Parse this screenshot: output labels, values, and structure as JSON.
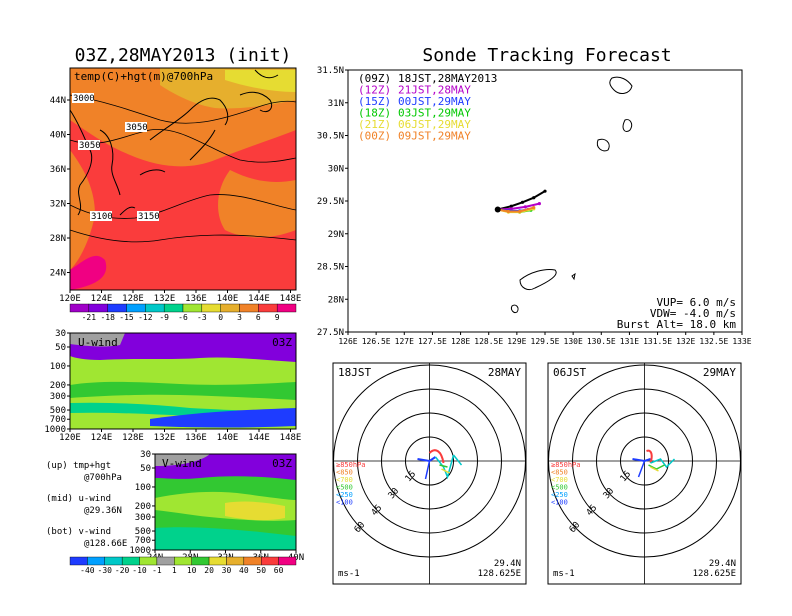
{
  "left_panel": {
    "title": "03Z,28MAY2013 (init)",
    "map_label": "temp(C)+hgt(m)@700hPa",
    "lat_ticks": [
      "44N",
      "40N",
      "36N",
      "32N",
      "28N",
      "24N"
    ],
    "lon_ticks": [
      "120E",
      "124E",
      "128E",
      "132E",
      "136E",
      "140E",
      "144E",
      "148E"
    ],
    "contour_labels": [
      "3000",
      "3050",
      "3050",
      "3100",
      "3150"
    ],
    "temp_colorbar": {
      "labels": [
        "-21",
        "-18",
        "-15",
        "-12",
        "-9",
        "-6",
        "-3",
        "0",
        "3",
        "6",
        "9"
      ],
      "colors": [
        "#a000c8",
        "#8200dc",
        "#1e3cff",
        "#00a0ff",
        "#00c8c8",
        "#00d28c",
        "#a0e632",
        "#e6dc32",
        "#e6af2d",
        "#f08228",
        "#fa3c3c",
        "#f00082"
      ]
    },
    "u_wind": {
      "title": "U-wind",
      "time": "03Z",
      "p_ticks": [
        "30",
        "50",
        "100",
        "200",
        "300",
        "500",
        "700",
        "1000"
      ],
      "x_ticks": [
        "120E",
        "124E",
        "128E",
        "132E",
        "136E",
        "140E",
        "144E",
        "148E"
      ]
    },
    "v_wind": {
      "title": "V-wind",
      "time": "03Z",
      "p_ticks": [
        "30",
        "50",
        "100",
        "200",
        "300",
        "500",
        "700",
        "1000"
      ],
      "x_ticks": [
        "24N",
        "28N",
        "32N",
        "36N",
        "40N"
      ]
    },
    "notes": [
      {
        "label": "(up) tmp+hgt",
        "sub": "@700hPa"
      },
      {
        "label": "(mid) u-wind",
        "sub": "@29.36N"
      },
      {
        "label": "(bot) v-wind",
        "sub": "@128.66E"
      }
    ],
    "wind_colorbar": {
      "labels": [
        "-40",
        "-30",
        "-20",
        "-10",
        "-1",
        "1",
        "10",
        "20",
        "30",
        "40",
        "50",
        "60"
      ],
      "colors": [
        "#1e3cff",
        "#00a0ff",
        "#00c8c8",
        "#00d28c",
        "#a0e632",
        "#a0a0a0",
        "#a0e632",
        "#32c832",
        "#e6dc32",
        "#e6af2d",
        "#f08228",
        "#fa3c3c",
        "#f00082"
      ]
    }
  },
  "chart_data": {
    "type": "scatter",
    "title": "Sonde Tracking Forecast",
    "xlim": [
      126,
      133
    ],
    "ylim": [
      27.5,
      31.5
    ],
    "x_ticks": [
      "126E",
      "126.5E",
      "127E",
      "127.5E",
      "128E",
      "128.5E",
      "129E",
      "129.5E",
      "130E",
      "130.5E",
      "131E",
      "131.5E",
      "132E",
      "132.5E",
      "133E"
    ],
    "y_ticks": [
      "31.5N",
      "31N",
      "30.5N",
      "30N",
      "29.5N",
      "29N",
      "28.5N",
      "28N",
      "27.5N"
    ],
    "legend": [
      {
        "code": "(09Z)",
        "text": "18JST,28MAY2013",
        "color": "#000000"
      },
      {
        "code": "(12Z)",
        "text": "21JST,28MAY",
        "color": "#b400c8"
      },
      {
        "code": "(15Z)",
        "text": "00JST,29MAY",
        "color": "#1e3cff"
      },
      {
        "code": "(18Z)",
        "text": "03JST,29MAY",
        "color": "#00c800"
      },
      {
        "code": "(21Z)",
        "text": "06JST,29MAY",
        "color": "#e6dc32"
      },
      {
        "code": "(00Z)",
        "text": "09JST,29MAY",
        "color": "#f08228"
      }
    ],
    "series": [
      {
        "name": "(09Z)",
        "color": "#000000",
        "x": [
          128.66,
          128.9,
          129.1,
          129.3,
          129.5
        ],
        "y": [
          29.37,
          29.42,
          29.48,
          29.55,
          29.65
        ]
      },
      {
        "name": "(12Z)",
        "color": "#b400c8",
        "x": [
          128.66,
          128.9,
          129.15,
          129.4
        ],
        "y": [
          29.37,
          29.38,
          29.41,
          29.46
        ]
      },
      {
        "name": "(15Z)",
        "color": "#1e3cff",
        "x": [
          128.66,
          128.85,
          129.05,
          129.2
        ],
        "y": [
          29.37,
          29.35,
          29.35,
          29.37
        ]
      },
      {
        "name": "(18Z)",
        "color": "#00c800",
        "x": [
          128.66,
          128.85,
          129.05,
          129.25
        ],
        "y": [
          29.37,
          29.34,
          29.33,
          29.36
        ]
      },
      {
        "name": "(21Z)",
        "color": "#e6dc32",
        "x": [
          128.66,
          128.85,
          129.05,
          129.3
        ],
        "y": [
          29.37,
          29.33,
          29.33,
          29.38
        ]
      },
      {
        "name": "(00Z)",
        "color": "#f08228",
        "x": [
          128.66,
          128.85,
          129.05,
          129.3
        ],
        "y": [
          29.37,
          29.34,
          29.34,
          29.4
        ]
      }
    ],
    "info": [
      "VUP= 6.0 m/s",
      "VDW= -4.0 m/s",
      "Burst Alt= 18.0 km"
    ]
  },
  "hodographs": [
    {
      "time": "18JST",
      "date": "28MAY",
      "lat": "29.4N",
      "lon": "128.625E",
      "unit": "ms-1",
      "ring_labels": [
        "15",
        "30",
        "45",
        "60"
      ],
      "levels": [
        "≥850hPa",
        "<850",
        "<700",
        "<500",
        "<250",
        "<100"
      ]
    },
    {
      "time": "06JST",
      "date": "29MAY",
      "lat": "29.4N",
      "lon": "128.625E",
      "unit": "ms-1",
      "ring_labels": [
        "15",
        "30",
        "45",
        "60"
      ],
      "levels": [
        "≥850hPa",
        "<850",
        "<700",
        "<500",
        "<250",
        "<100"
      ]
    }
  ]
}
